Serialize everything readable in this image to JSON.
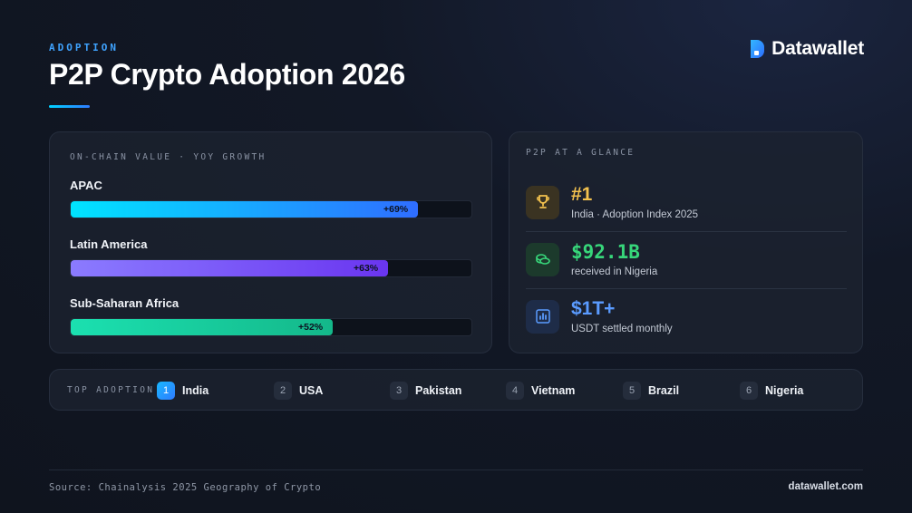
{
  "header": {
    "eyebrow": "ADOPTION",
    "title": "P2P Crypto Adoption 2026",
    "brand": "Datawallet"
  },
  "chart_data": {
    "type": "bar",
    "title": "ON-CHAIN VALUE · YOY GROWTH",
    "categories": [
      "APAC",
      "Latin America",
      "Sub-Saharan Africa"
    ],
    "values": [
      69,
      63,
      52
    ],
    "value_labels": [
      "+69%",
      "+63%",
      "+52%"
    ],
    "xlim": [
      0,
      80
    ],
    "orientation": "horizontal",
    "colors": [
      [
        "#00e5ff",
        "#2f6dff"
      ],
      [
        "#8b7bff",
        "#6a35f0"
      ],
      [
        "#1be0b0",
        "#14b88a"
      ]
    ]
  },
  "glance": {
    "label": "P2P AT A GLANCE",
    "stats": [
      {
        "value": "#1",
        "caption": "India · Adoption Index 2025",
        "icon": "trophy-icon",
        "color": "#f2c14e",
        "icon_bg": "#3a3322"
      },
      {
        "value": "$92.1B",
        "caption": "received in Nigeria",
        "icon": "coins-icon",
        "color": "#37d67a",
        "icon_bg": "#1c3a2c"
      },
      {
        "value": "$1T+",
        "caption": "USDT settled monthly",
        "icon": "bar-chart-icon",
        "color": "#5a9bff",
        "icon_bg": "#1e2c48"
      }
    ]
  },
  "adoption": {
    "label": "TOP ADOPTION",
    "ranks": [
      {
        "num": "1",
        "name": "India"
      },
      {
        "num": "2",
        "name": "USA"
      },
      {
        "num": "3",
        "name": "Pakistan"
      },
      {
        "num": "4",
        "name": "Vietnam"
      },
      {
        "num": "5",
        "name": "Brazil"
      },
      {
        "num": "6",
        "name": "Nigeria"
      }
    ]
  },
  "footer": {
    "source": "Source: Chainalysis 2025 Geography of Crypto",
    "site": "datawallet.com"
  }
}
